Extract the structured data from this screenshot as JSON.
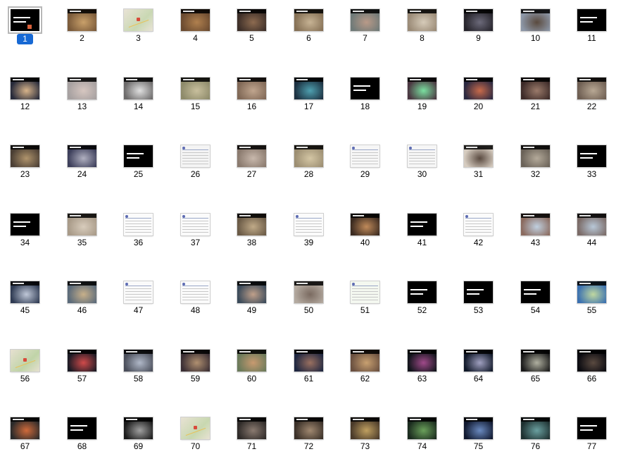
{
  "slides": [
    {
      "number": "1",
      "style": "title",
      "selected": true
    },
    {
      "number": "2",
      "style": "photo",
      "bg": "#7a5a3a",
      "accent": "#c9a06a"
    },
    {
      "number": "3",
      "style": "map",
      "bg": "#e9e3d6",
      "accent": "#c9d8b3"
    },
    {
      "number": "4",
      "style": "photo",
      "bg": "#6a4a30",
      "accent": "#b0804e"
    },
    {
      "number": "5",
      "style": "photo",
      "bg": "#3c2e28",
      "accent": "#8d6b50"
    },
    {
      "number": "6",
      "style": "photo",
      "bg": "#857055",
      "accent": "#c7b394"
    },
    {
      "number": "7",
      "style": "photo",
      "bg": "#6f7a78",
      "accent": "#b99a88"
    },
    {
      "number": "8",
      "style": "photo",
      "bg": "#9a8a76",
      "accent": "#d6cbb9"
    },
    {
      "number": "9",
      "style": "photo",
      "bg": "#25232a",
      "accent": "#6c6a7a"
    },
    {
      "number": "10",
      "style": "photo",
      "bg": "#8c96a6",
      "accent": "#5a4a3e"
    },
    {
      "number": "11",
      "style": "text"
    },
    {
      "number": "12",
      "style": "photo",
      "bg": "#272a3a",
      "accent": "#d8b48a"
    },
    {
      "number": "13",
      "style": "photo",
      "bg": "#a6a0a0",
      "accent": "#d6c6c0"
    },
    {
      "number": "14",
      "style": "photo",
      "bg": "#6c6a6a",
      "accent": "#e0e0e0"
    },
    {
      "number": "15",
      "style": "photo",
      "bg": "#8d8a6a",
      "accent": "#c8bf9d"
    },
    {
      "number": "16",
      "style": "photo",
      "bg": "#806856",
      "accent": "#c0a58e"
    },
    {
      "number": "17",
      "style": "photo",
      "bg": "#1c3040",
      "accent": "#4ea0b0"
    },
    {
      "number": "18",
      "style": "text"
    },
    {
      "number": "19",
      "style": "photo",
      "bg": "#4a3640",
      "accent": "#7ae0a0"
    },
    {
      "number": "20",
      "style": "photo",
      "bg": "#2a2840",
      "accent": "#c86a4a"
    },
    {
      "number": "21",
      "style": "photo",
      "bg": "#3c2a28",
      "accent": "#9a7a6a"
    },
    {
      "number": "22",
      "style": "photo",
      "bg": "#6e5e52",
      "accent": "#b8a894"
    },
    {
      "number": "23",
      "style": "photo",
      "bg": "#4a3e34",
      "accent": "#b0946c"
    },
    {
      "number": "24",
      "style": "photo",
      "bg": "#3c3e5a",
      "accent": "#b0b0c0"
    },
    {
      "number": "25",
      "style": "text"
    },
    {
      "number": "26",
      "style": "page",
      "bg": "#f4f4f4",
      "accent": "#b04040"
    },
    {
      "number": "27",
      "style": "photo",
      "bg": "#8a7a6e",
      "accent": "#c8b8ac"
    },
    {
      "number": "28",
      "style": "photo",
      "bg": "#9c8e72",
      "accent": "#d4c6a4"
    },
    {
      "number": "29",
      "style": "page",
      "bg": "#f6f6f6",
      "accent": "#3a3a3a"
    },
    {
      "number": "30",
      "style": "page",
      "bg": "#f6f6f6",
      "accent": "#8a6a5a"
    },
    {
      "number": "31",
      "style": "photo",
      "bg": "#d6ccc0",
      "accent": "#5a4a40"
    },
    {
      "number": "32",
      "style": "photo",
      "bg": "#6a6258",
      "accent": "#b4aa9a"
    },
    {
      "number": "33",
      "style": "text"
    },
    {
      "number": "34",
      "style": "text"
    },
    {
      "number": "35",
      "style": "photo",
      "bg": "#a89a88",
      "accent": "#d8ccbc"
    },
    {
      "number": "36",
      "style": "page",
      "bg": "#fbfbfb",
      "accent": "#6a7ac0"
    },
    {
      "number": "37",
      "style": "page",
      "bg": "#fbfbfb",
      "accent": "#6a7ac0"
    },
    {
      "number": "38",
      "style": "photo",
      "bg": "#6a5a46",
      "accent": "#c0aa88"
    },
    {
      "number": "39",
      "style": "page",
      "bg": "#fbfbfb",
      "accent": "#6a7ac0"
    },
    {
      "number": "40",
      "style": "photo",
      "bg": "#3a2a20",
      "accent": "#c08a5a"
    },
    {
      "number": "41",
      "style": "text"
    },
    {
      "number": "42",
      "style": "page",
      "bg": "#fbfbfb",
      "accent": "#6a7ac0"
    },
    {
      "number": "43",
      "style": "photo",
      "bg": "#8a6a5e",
      "accent": "#c0d0e0"
    },
    {
      "number": "44",
      "style": "photo",
      "bg": "#7a6a66",
      "accent": "#b8c8d8"
    },
    {
      "number": "45",
      "style": "photo",
      "bg": "#2e3a52",
      "accent": "#c0c8d8"
    },
    {
      "number": "46",
      "style": "photo",
      "bg": "#5a6a7a",
      "accent": "#c8b08a"
    },
    {
      "number": "47",
      "style": "page",
      "bg": "#fafafa",
      "accent": "#3a6ad0"
    },
    {
      "number": "48",
      "style": "page",
      "bg": "#fbfbfb",
      "accent": "#6a7ac0"
    },
    {
      "number": "49",
      "style": "photo",
      "bg": "#3a4a5a",
      "accent": "#c0a08a"
    },
    {
      "number": "50",
      "style": "photo",
      "bg": "#b4aaa0",
      "accent": "#7a6a60"
    },
    {
      "number": "51",
      "style": "page",
      "bg": "#f4f8f0",
      "accent": "#3a9a5a"
    },
    {
      "number": "52",
      "style": "text"
    },
    {
      "number": "53",
      "style": "text"
    },
    {
      "number": "54",
      "style": "text"
    },
    {
      "number": "55",
      "style": "photo",
      "bg": "#3a70b0",
      "accent": "#c0d8a0"
    },
    {
      "number": "56",
      "style": "map",
      "bg": "#e6e0d0",
      "accent": "#c0d4a8"
    },
    {
      "number": "57",
      "style": "photo",
      "bg": "#1a1a24",
      "accent": "#d04a4a"
    },
    {
      "number": "58",
      "style": "photo",
      "bg": "#4a4e5a",
      "accent": "#b0b8c8"
    },
    {
      "number": "59",
      "style": "photo",
      "bg": "#3a2e34",
      "accent": "#b09070"
    },
    {
      "number": "60",
      "style": "photo",
      "bg": "#6a7a5a",
      "accent": "#c89a70"
    },
    {
      "number": "61",
      "style": "photo",
      "bg": "#1e2640",
      "accent": "#9a7060"
    },
    {
      "number": "62",
      "style": "photo",
      "bg": "#6a5040",
      "accent": "#c8a070"
    },
    {
      "number": "63",
      "style": "photo",
      "bg": "#10141a",
      "accent": "#a04a8a"
    },
    {
      "number": "64",
      "style": "photo",
      "bg": "#101828",
      "accent": "#a0a0c0"
    },
    {
      "number": "65",
      "style": "photo",
      "bg": "#1a1a1a",
      "accent": "#b0b0a0"
    },
    {
      "number": "66",
      "style": "photo",
      "bg": "#0a0a10",
      "accent": "#5a4a40"
    },
    {
      "number": "67",
      "style": "photo",
      "bg": "#2a2a2a",
      "accent": "#d06a3a"
    },
    {
      "number": "68",
      "style": "text"
    },
    {
      "number": "69",
      "style": "photo",
      "bg": "#1a1a1a",
      "accent": "#a0a0a0"
    },
    {
      "number": "70",
      "style": "map",
      "bg": "#e8e2d4",
      "accent": "#c8d8b0"
    },
    {
      "number": "71",
      "style": "photo",
      "bg": "#2e2a28",
      "accent": "#8a7a70"
    },
    {
      "number": "72",
      "style": "photo",
      "bg": "#3a3028",
      "accent": "#a08870"
    },
    {
      "number": "73",
      "style": "photo",
      "bg": "#4a3a2a",
      "accent": "#c0a060"
    },
    {
      "number": "74",
      "style": "photo",
      "bg": "#1a2a1e",
      "accent": "#6aa05a"
    },
    {
      "number": "75",
      "style": "photo",
      "bg": "#10182e",
      "accent": "#6a8ac0"
    },
    {
      "number": "76",
      "style": "photo",
      "bg": "#1e3030",
      "accent": "#6aa0a0"
    },
    {
      "number": "77",
      "style": "text"
    }
  ]
}
